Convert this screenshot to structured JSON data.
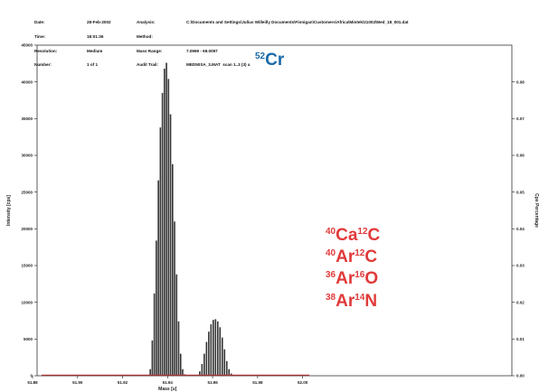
{
  "header": {
    "col1_labels": [
      "Date:",
      "Time:",
      "Resolution:",
      "Number:"
    ],
    "col2_values": [
      "28-Feb-2002",
      "18:01:36",
      "Medium",
      "1 of 1"
    ],
    "col3_labels": [
      "Analysis:",
      "Method:",
      "Mass Range:",
      "Audit Trail:"
    ],
    "col4_values": [
      "C:\\Documents and Settings\\Julius Willeilly Documents\\Finnigan\\Customers\\Africa\\Mintek\\21002\\Med_18_001.dat",
      "",
      "7.0969 - 69.0097",
      "MED50SA_3.MAT  scan 1..3 (3) a"
    ]
  },
  "chart_data": {
    "type": "bar",
    "title": "",
    "xlabel": "Mass [u]",
    "ylabel": "Intensity [cps]",
    "y2label": "Cps Percentage",
    "xlim": [
      51.882,
      52.093
    ],
    "ylim": [
      0,
      45000
    ],
    "y2lim": [
      0,
      0.09
    ],
    "x_ticks": [
      "51.88",
      "51.90",
      "51.92",
      "51.94",
      "51.96",
      "51.98",
      "52.00"
    ],
    "x_tick_values": [
      51.88,
      51.9,
      51.92,
      51.94,
      51.96,
      51.98,
      52.0
    ],
    "y_ticks": [
      0,
      5000,
      10000,
      15000,
      20000,
      25000,
      30000,
      35000,
      40000,
      45000
    ],
    "y2_ticks": [
      "0.00",
      "0.01",
      "0.02",
      "0.03",
      "0.04",
      "0.05",
      "0.06",
      "0.07",
      "0.08"
    ],
    "y2_tick_values": [
      0,
      0.01,
      0.02,
      0.03,
      0.04,
      0.05,
      0.06,
      0.07,
      0.08
    ],
    "baseline_color": "#e03a3a",
    "bar_color": "#333333",
    "series": [
      {
        "x": [
          51.9323,
          51.9332,
          51.9341,
          51.935,
          51.9359,
          51.9368,
          51.9377,
          51.9386,
          51.9395,
          51.9404,
          51.9413,
          51.9422,
          51.9431,
          51.944,
          51.9449,
          51.9458,
          51.9467,
          51.9476
        ],
        "values": [
          900,
          4800,
          11200,
          18400,
          26600,
          33800,
          38500,
          41800,
          42600,
          40400,
          35600,
          28800,
          21000,
          13800,
          7400,
          3000,
          900,
          200
        ]
      },
      {
        "x": [
          51.9543,
          51.9553,
          51.9563,
          51.9573,
          51.9583,
          51.9593,
          51.9603,
          51.9613,
          51.9623,
          51.9633,
          51.9643,
          51.9653,
          51.9663,
          51.9673,
          51.9683
        ],
        "values": [
          600,
          1600,
          3000,
          4600,
          6000,
          7000,
          7600,
          7700,
          7400,
          6600,
          5200,
          3600,
          2000,
          900,
          300
        ]
      }
    ],
    "annotations": [
      {
        "mass": "52",
        "element": "Cr",
        "color": "#1a6aa8"
      },
      {
        "mass": "40",
        "element": "Ca",
        "mass2": "12",
        "element2": "C",
        "color": "#e03a3a"
      },
      {
        "mass": "40",
        "element": "Ar",
        "mass2": "12",
        "element2": "C",
        "color": "#e03a3a"
      },
      {
        "mass": "36",
        "element": "Ar",
        "mass2": "16",
        "element2": "O",
        "color": "#e03a3a"
      },
      {
        "mass": "38",
        "element": "Ar",
        "mass2": "14",
        "element2": "N",
        "color": "#e03a3a"
      }
    ]
  }
}
